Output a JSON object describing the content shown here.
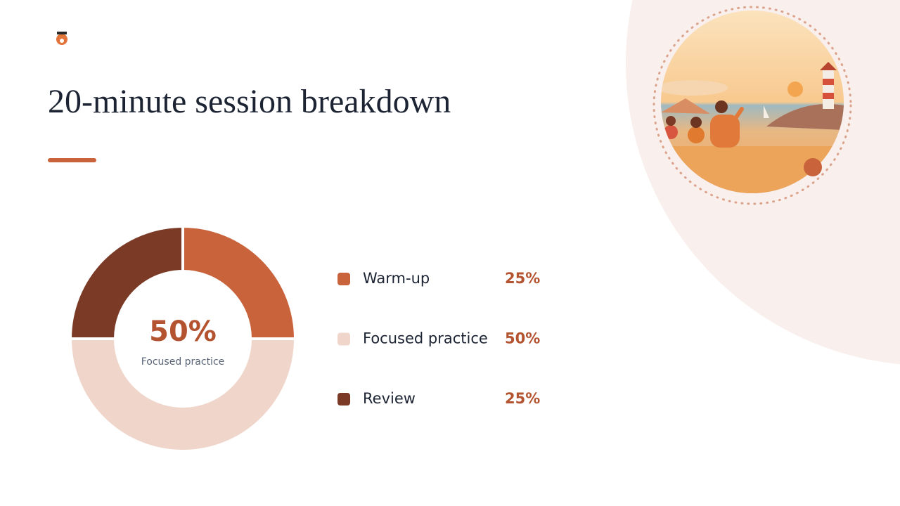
{
  "chart_data": {
    "type": "donut",
    "title": "20-minute session breakdown",
    "categories": [
      "Warm-up",
      "Focused practice",
      "Review"
    ],
    "values": [
      25,
      50,
      25
    ],
    "value_labels": [
      "25%",
      "50%",
      "25%"
    ],
    "colors": [
      "#c8633c",
      "#f0d5cb",
      "#7a3a25"
    ]
  }
}
